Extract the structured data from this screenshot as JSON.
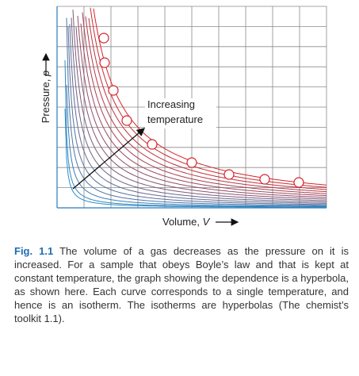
{
  "figure": {
    "y_axis_label": {
      "text": "Pressure, ",
      "symbol": "p"
    },
    "x_axis_label": {
      "text": "Volume, ",
      "symbol": "V"
    },
    "annotation": [
      "Increasing",
      "temperature"
    ]
  },
  "caption": {
    "label": "Fig. 1.1",
    "text": "The volume of a gas decreases as the pressure on it is increased. For a sample that obeys Boyle’s law and that is kept at constant temperature, the graph showing the dependence is a hyperbola, as shown here. Each curve corresponds to a single temperature, and hence is an isotherm. The isotherms are hyperbolas (The chemist’s toolkit 1.1)."
  }
}
